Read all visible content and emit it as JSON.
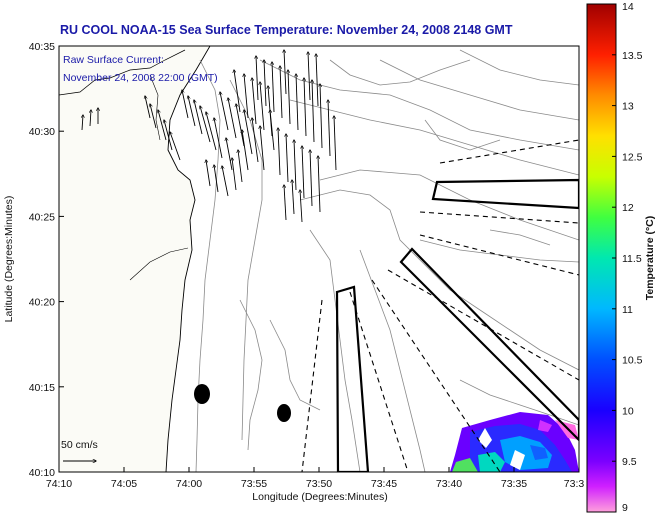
{
  "title": "RU COOL  NOAA-15  Sea Surface Temperature:  November 24, 2008 2148 GMT",
  "inset": {
    "line1": "Raw Surface Current:",
    "line2": "November 24, 2008 22:00 (GMT)"
  },
  "scale_label": "50 cm/s",
  "xaxis": {
    "label": "Longitude (Degrees:Minutes)",
    "ticks": [
      "74:10",
      "74:05",
      "74:00",
      "73:55",
      "73:50",
      "73:45",
      "73:40",
      "73:35",
      "73:3"
    ]
  },
  "yaxis": {
    "label": "Latitude (Degrees:Minutes)",
    "ticks": [
      "40:10",
      "40:15",
      "40:20",
      "40:25",
      "40:30",
      "40:35"
    ]
  },
  "colorbar": {
    "label": "Temperature (°C)",
    "ticks": [
      "9",
      "9.5",
      "10",
      "10.5",
      "11",
      "11.5",
      "12",
      "12.5",
      "13",
      "13.5",
      "14"
    ],
    "min": 9,
    "max": 14
  },
  "colors": {
    "title": "#1a1aa8",
    "land": "#fbfbf6",
    "sea_contour": "#8a8a8a"
  }
}
